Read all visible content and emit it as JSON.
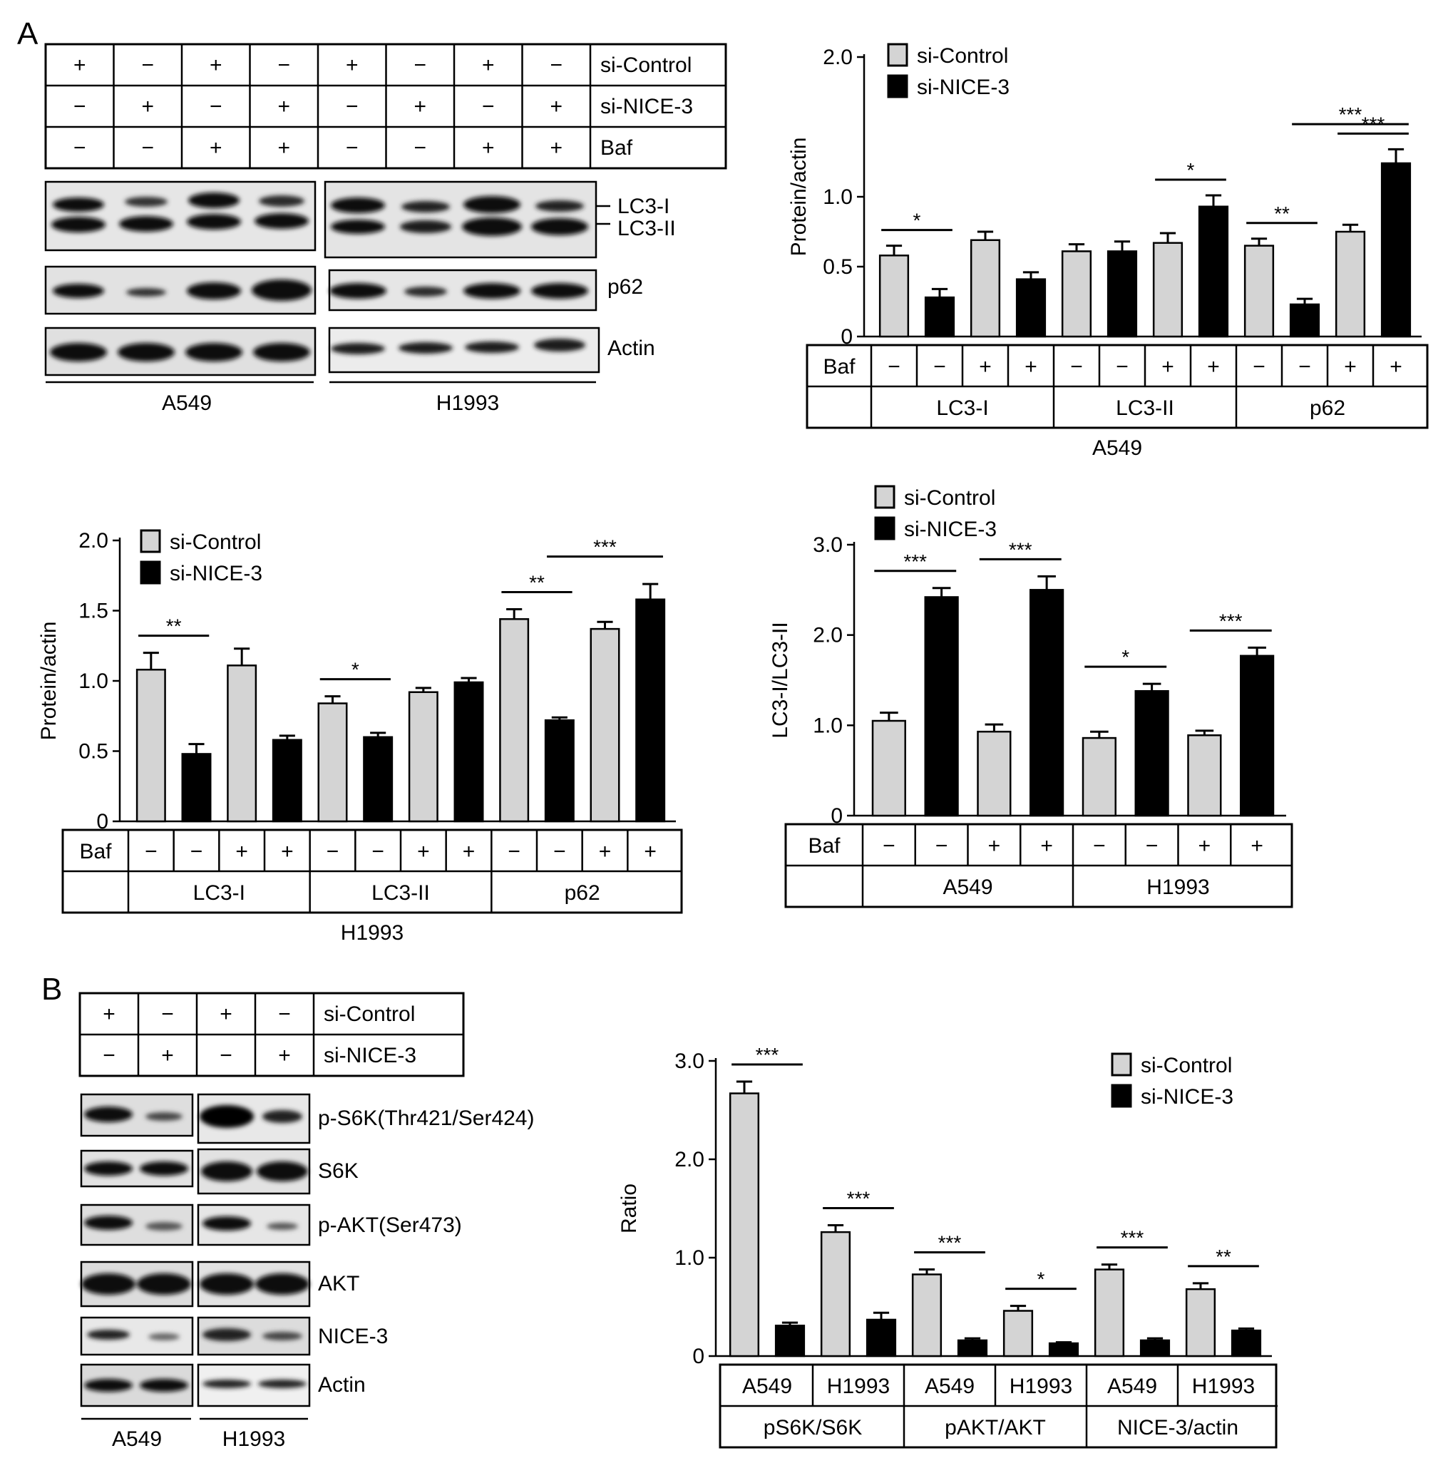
{
  "panels": {
    "A": "A",
    "B": "B"
  },
  "blotA": {
    "grid": {
      "rows": [
        {
          "label": "si-Control",
          "signs": [
            "+",
            "−",
            "+",
            "−",
            "+",
            "−",
            "+",
            "−"
          ]
        },
        {
          "label": "si-NICE-3",
          "signs": [
            "−",
            "+",
            "−",
            "+",
            "−",
            "+",
            "−",
            "+"
          ]
        },
        {
          "label": "Baf",
          "signs": [
            "−",
            "−",
            "+",
            "+",
            "−",
            "−",
            "+",
            "+"
          ]
        }
      ]
    },
    "bands": [
      "LC3-I",
      "LC3-II",
      "p62",
      "Actin"
    ],
    "cells": [
      "A549",
      "H1993"
    ]
  },
  "blotB": {
    "grid": {
      "rows": [
        {
          "label": "si-Control",
          "signs": [
            "+",
            "−",
            "+",
            "−"
          ]
        },
        {
          "label": "si-NICE-3",
          "signs": [
            "−",
            "+",
            "−",
            "+"
          ]
        }
      ]
    },
    "bands": [
      "p-S6K(Thr421/Ser424)",
      "S6K",
      "p-AKT(Ser473)",
      "AKT",
      "NICE-3",
      "Actin"
    ],
    "cells": [
      "A549",
      "H1993"
    ]
  },
  "legend": {
    "control": "si-Control",
    "treated": "si-NICE-3"
  },
  "colors": {
    "control": "#d4d4d4",
    "treated": "#000000",
    "axis": "#000000"
  },
  "chart_data": [
    {
      "id": "A-A549",
      "type": "bar",
      "ylabel": "Protein/actin",
      "xlabel": "A549",
      "ylim": [
        0,
        2.0
      ],
      "yticks": [
        "0",
        "0.5",
        "1.0",
        "2.0"
      ],
      "legend": "top",
      "baf_row_label": "Baf",
      "baf": [
        "−",
        "−",
        "+",
        "+",
        "−",
        "−",
        "+",
        "+",
        "−",
        "−",
        "+",
        "+"
      ],
      "groups": [
        "LC3-I",
        "LC3-II",
        "p62"
      ],
      "bars": [
        {
          "series": "si-Control",
          "value": 0.58,
          "err": 0.07
        },
        {
          "series": "si-NICE-3",
          "value": 0.28,
          "err": 0.06
        },
        {
          "series": "si-Control",
          "value": 0.69,
          "err": 0.06
        },
        {
          "series": "si-NICE-3",
          "value": 0.41,
          "err": 0.05
        },
        {
          "series": "si-Control",
          "value": 0.61,
          "err": 0.05
        },
        {
          "series": "si-NICE-3",
          "value": 0.61,
          "err": 0.07
        },
        {
          "series": "si-Control",
          "value": 0.67,
          "err": 0.07
        },
        {
          "series": "si-NICE-3",
          "value": 0.93,
          "err": 0.08
        },
        {
          "series": "si-Control",
          "value": 0.65,
          "err": 0.05
        },
        {
          "series": "si-NICE-3",
          "value": 0.23,
          "err": 0.04
        },
        {
          "series": "si-Control",
          "value": 0.75,
          "err": 0.05
        },
        {
          "series": "si-NICE-3",
          "value": 1.24,
          "err": 0.1
        }
      ],
      "significance": [
        {
          "from": 0,
          "to": 1,
          "stars": "*"
        },
        {
          "from": 6,
          "to": 7,
          "stars": "*"
        },
        {
          "from": 8,
          "to": 9,
          "stars": "**"
        },
        {
          "from": 10,
          "to": 11,
          "stars": "***"
        },
        {
          "from": 9,
          "to": 11,
          "stars": "***"
        }
      ]
    },
    {
      "id": "A-H1993",
      "type": "bar",
      "ylabel": "Protein/actin",
      "xlabel": "H1993",
      "ylim": [
        0,
        2.0
      ],
      "yticks": [
        "0",
        "0.5",
        "1.0",
        "1.5",
        "2.0"
      ],
      "legend": "top-left",
      "baf_row_label": "Baf",
      "baf": [
        "−",
        "−",
        "+",
        "+",
        "−",
        "−",
        "+",
        "+",
        "−",
        "−",
        "+",
        "+"
      ],
      "groups": [
        "LC3-I",
        "LC3-II",
        "p62"
      ],
      "bars": [
        {
          "series": "si-Control",
          "value": 1.08,
          "err": 0.12
        },
        {
          "series": "si-NICE-3",
          "value": 0.48,
          "err": 0.07
        },
        {
          "series": "si-Control",
          "value": 1.11,
          "err": 0.12
        },
        {
          "series": "si-NICE-3",
          "value": 0.58,
          "err": 0.03
        },
        {
          "series": "si-Control",
          "value": 0.84,
          "err": 0.05
        },
        {
          "series": "si-NICE-3",
          "value": 0.6,
          "err": 0.03
        },
        {
          "series": "si-Control",
          "value": 0.92,
          "err": 0.03
        },
        {
          "series": "si-NICE-3",
          "value": 0.99,
          "err": 0.03
        },
        {
          "series": "si-Control",
          "value": 1.44,
          "err": 0.07
        },
        {
          "series": "si-NICE-3",
          "value": 0.72,
          "err": 0.02
        },
        {
          "series": "si-Control",
          "value": 1.37,
          "err": 0.05
        },
        {
          "series": "si-NICE-3",
          "value": 1.58,
          "err": 0.11
        }
      ],
      "significance": [
        {
          "from": 0,
          "to": 1,
          "stars": "**"
        },
        {
          "from": 4,
          "to": 5,
          "stars": "*"
        },
        {
          "from": 8,
          "to": 9,
          "stars": "**"
        },
        {
          "from": 9,
          "to": 11,
          "stars": "***"
        }
      ]
    },
    {
      "id": "A-ratio",
      "type": "bar",
      "ylabel": "LC3-I/LC3-II",
      "xlabel": "",
      "ylim": [
        0,
        3.0
      ],
      "yticks": [
        "0",
        "1.0",
        "2.0",
        "3.0"
      ],
      "legend": "top-left",
      "baf_row_label": "Baf",
      "baf": [
        "−",
        "−",
        "+",
        "+",
        "−",
        "−",
        "+",
        "+"
      ],
      "groups": [
        "A549",
        "H1993"
      ],
      "bars": [
        {
          "series": "si-Control",
          "value": 1.05,
          "err": 0.09
        },
        {
          "series": "si-NICE-3",
          "value": 2.42,
          "err": 0.1
        },
        {
          "series": "si-Control",
          "value": 0.93,
          "err": 0.08
        },
        {
          "series": "si-NICE-3",
          "value": 2.5,
          "err": 0.15
        },
        {
          "series": "si-Control",
          "value": 0.86,
          "err": 0.07
        },
        {
          "series": "si-NICE-3",
          "value": 1.38,
          "err": 0.08
        },
        {
          "series": "si-Control",
          "value": 0.89,
          "err": 0.05
        },
        {
          "series": "si-NICE-3",
          "value": 1.77,
          "err": 0.09
        }
      ],
      "significance": [
        {
          "from": 0,
          "to": 1,
          "stars": "***"
        },
        {
          "from": 2,
          "to": 3,
          "stars": "***"
        },
        {
          "from": 4,
          "to": 5,
          "stars": "*"
        },
        {
          "from": 6,
          "to": 7,
          "stars": "***"
        }
      ]
    },
    {
      "id": "B-ratio",
      "type": "bar",
      "ylabel": "Ratio",
      "xlabel": "",
      "ylim": [
        0,
        3.0
      ],
      "yticks": [
        "0",
        "1.0",
        "2.0",
        "3.0"
      ],
      "legend": "top-right",
      "cells": [
        "A549",
        "H1993",
        "A549",
        "H1993",
        "A549",
        "H1993"
      ],
      "groups": [
        "pS6K/S6K",
        "pAKT/AKT",
        "NICE-3/actin"
      ],
      "bars": [
        {
          "series": "si-Control",
          "value": 2.67,
          "err": 0.12
        },
        {
          "series": "si-NICE-3",
          "value": 0.31,
          "err": 0.03
        },
        {
          "series": "si-Control",
          "value": 1.26,
          "err": 0.07
        },
        {
          "series": "si-NICE-3",
          "value": 0.37,
          "err": 0.07
        },
        {
          "series": "si-Control",
          "value": 0.83,
          "err": 0.05
        },
        {
          "series": "si-NICE-3",
          "value": 0.16,
          "err": 0.02
        },
        {
          "series": "si-Control",
          "value": 0.46,
          "err": 0.05
        },
        {
          "series": "si-NICE-3",
          "value": 0.13,
          "err": 0.01
        },
        {
          "series": "si-Control",
          "value": 0.88,
          "err": 0.05
        },
        {
          "series": "si-NICE-3",
          "value": 0.16,
          "err": 0.02
        },
        {
          "series": "si-Control",
          "value": 0.68,
          "err": 0.06
        },
        {
          "series": "si-NICE-3",
          "value": 0.26,
          "err": 0.02
        }
      ],
      "significance": [
        {
          "from": 0,
          "to": 1,
          "stars": "***"
        },
        {
          "from": 2,
          "to": 3,
          "stars": "***"
        },
        {
          "from": 4,
          "to": 5,
          "stars": "***"
        },
        {
          "from": 6,
          "to": 7,
          "stars": "*"
        },
        {
          "from": 8,
          "to": 9,
          "stars": "***"
        },
        {
          "from": 10,
          "to": 11,
          "stars": "**"
        }
      ]
    }
  ]
}
